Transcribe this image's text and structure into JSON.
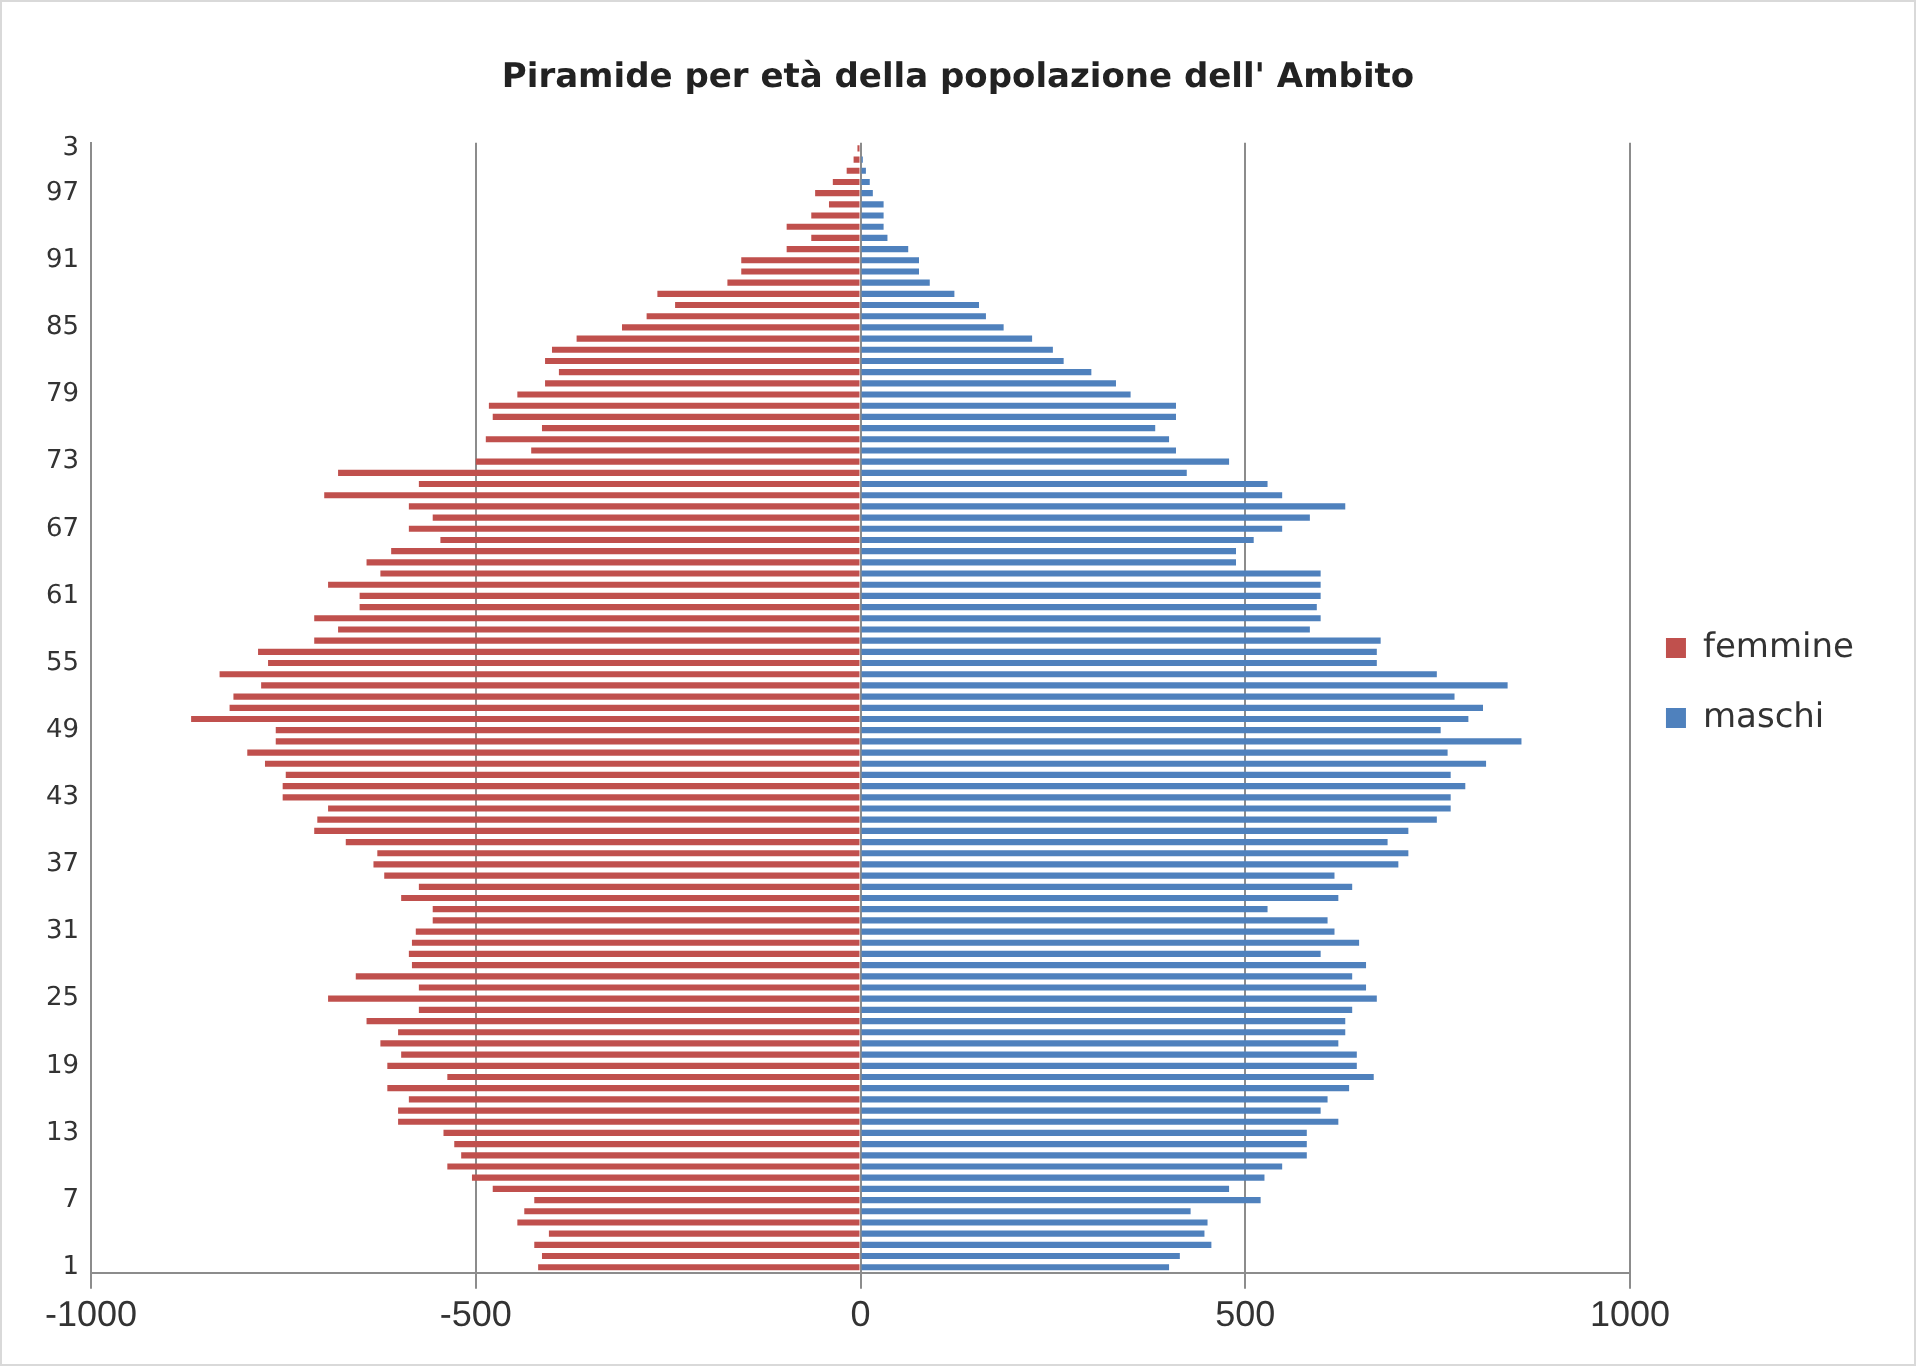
{
  "chart_data": {
    "type": "bar",
    "orientation": "horizontal",
    "stacked": true,
    "title": "Piramide per età della popolazione dell' Ambito",
    "categories": [
      "3",
      null,
      null,
      null,
      "97",
      null,
      null,
      null,
      null,
      null,
      "91",
      null,
      null,
      null,
      null,
      null,
      "85",
      null,
      null,
      null,
      null,
      null,
      "79",
      null,
      null,
      null,
      null,
      null,
      "73",
      null,
      null,
      null,
      null,
      null,
      "67",
      null,
      null,
      null,
      null,
      null,
      "61",
      null,
      null,
      null,
      null,
      null,
      "55",
      null,
      null,
      null,
      null,
      null,
      "49",
      null,
      null,
      null,
      null,
      null,
      "43",
      null,
      null,
      null,
      null,
      null,
      "37",
      null,
      null,
      null,
      null,
      null,
      "31",
      null,
      null,
      null,
      null,
      null,
      "25",
      null,
      null,
      null,
      null,
      null,
      "19",
      null,
      null,
      null,
      null,
      null,
      "13",
      null,
      null,
      null,
      null,
      null,
      "7",
      null,
      null,
      null,
      null,
      null,
      "1"
    ],
    "series": [
      {
        "name": "femmine",
        "color": "#c0504d",
        "values": [
          -4,
          -9,
          -18,
          -36,
          -59,
          -41,
          -64,
          -96,
          -64,
          -96,
          -155,
          -155,
          -173,
          -264,
          -241,
          -278,
          -310,
          -369,
          -401,
          -410,
          -392,
          -410,
          -446,
          -483,
          -478,
          -414,
          -487,
          -428,
          -500,
          -679,
          -574,
          -697,
          -587,
          -556,
          -587,
          -546,
          -610,
          -642,
          -624,
          -692,
          -651,
          -651,
          -710,
          -679,
          -710,
          -783,
          -770,
          -833,
          -779,
          -815,
          -820,
          -870,
          -760,
          -760,
          -797,
          -774,
          -747,
          -751,
          -751,
          -692,
          -706,
          -710,
          -669,
          -628,
          -633,
          -619,
          -574,
          -597,
          -556,
          -556,
          -578,
          -583,
          -587,
          -583,
          -656,
          -574,
          -692,
          -574,
          -642,
          -601,
          -624,
          -597,
          -615,
          -537,
          -615,
          -587,
          -601,
          -601,
          -542,
          -528,
          -519,
          -537,
          -505,
          -478,
          -424,
          -437,
          -446,
          -405,
          -424,
          -414,
          -419
        ]
      },
      {
        "name": "maschi",
        "color": "#4f81bd",
        "values": [
          null,
          3,
          7,
          12,
          16,
          30,
          30,
          30,
          35,
          62,
          76,
          76,
          90,
          122,
          154,
          163,
          186,
          223,
          250,
          264,
          300,
          332,
          351,
          410,
          410,
          383,
          401,
          410,
          479,
          424,
          529,
          548,
          630,
          584,
          548,
          511,
          488,
          488,
          598,
          598,
          598,
          593,
          598,
          584,
          676,
          671,
          671,
          749,
          841,
          772,
          809,
          790,
          754,
          859,
          763,
          813,
          767,
          786,
          767,
          767,
          749,
          712,
          685,
          712,
          699,
          616,
          639,
          621,
          529,
          607,
          616,
          648,
          598,
          657,
          639,
          657,
          671,
          639,
          630,
          630,
          621,
          645,
          645,
          667,
          635,
          607,
          598,
          621,
          580,
          580,
          580,
          548,
          525,
          479,
          520,
          429,
          451,
          447,
          456,
          415,
          401
        ]
      }
    ],
    "xlim": [
      -1000,
      1000
    ],
    "xticks": [
      -1000,
      -500,
      0,
      500,
      1000
    ],
    "grid": "x",
    "legend": "right"
  }
}
